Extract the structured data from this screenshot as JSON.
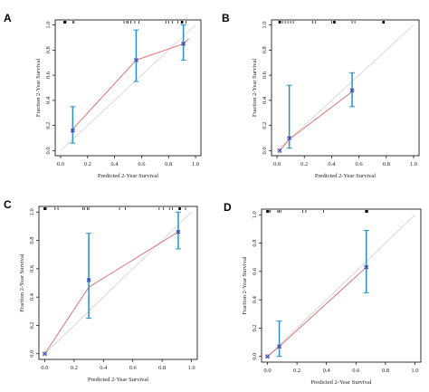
{
  "colors": {
    "calibration_line": "#e0666a",
    "ideal_line": "#c4c4c4",
    "error_bar": "#2a8fc8",
    "point_x": "#2b34c9",
    "point_circle": "#888888",
    "axis": "#000000",
    "rug": "#000000"
  },
  "chart_data": [
    {
      "panel": "A",
      "type": "line",
      "xlabel": "Predicted 2-Year Survival",
      "ylabel": "Fraction 2-Year Survival",
      "xlim": [
        0,
        1
      ],
      "ylim": [
        0,
        1
      ],
      "x_ticks": [
        "0.0",
        "0.2",
        "0.4",
        "0.6",
        "0.8",
        "1.0"
      ],
      "y_ticks": [
        "0.0",
        "0.2",
        "0.4",
        "0.6",
        "0.8",
        "1.0"
      ],
      "grid": false,
      "points": [
        {
          "x": 0.09,
          "y": 0.16,
          "lo": 0.06,
          "hi": 0.35
        },
        {
          "x": 0.56,
          "y": 0.72,
          "lo": 0.55,
          "hi": 0.96
        },
        {
          "x": 0.91,
          "y": 0.85,
          "lo": 0.72,
          "hi": 1.0
        }
      ],
      "curve": [
        [
          0.08,
          0.16
        ],
        [
          0.56,
          0.72
        ],
        [
          0.91,
          0.85
        ],
        [
          0.95,
          0.89
        ]
      ],
      "rug": [
        0.03,
        0.04,
        0.09,
        0.1,
        0.47,
        0.49,
        0.5,
        0.52,
        0.55,
        0.58,
        0.78,
        0.8,
        0.83,
        0.87,
        0.9,
        0.93
      ],
      "rug_heavy": [
        0.03,
        0.9
      ]
    },
    {
      "panel": "B",
      "type": "line",
      "xlabel": "Predicted 2-Year Survival",
      "ylabel": "Fraction 2-Year Survival",
      "xlim": [
        0,
        1
      ],
      "ylim": [
        0,
        1
      ],
      "x_ticks": [
        "0.0",
        "0.2",
        "0.4",
        "0.6",
        "0.8",
        "1.0"
      ],
      "y_ticks": [
        "0.0",
        "0.2",
        "0.4",
        "0.6",
        "0.8",
        "1.0"
      ],
      "grid": false,
      "points": [
        {
          "x": 0.02,
          "y": 0.0,
          "lo": null,
          "hi": null
        },
        {
          "x": 0.09,
          "y": 0.1,
          "lo": 0.02,
          "hi": 0.52
        },
        {
          "x": 0.55,
          "y": 0.48,
          "lo": 0.35,
          "hi": 0.62
        }
      ],
      "curve": [
        [
          0.02,
          0.0
        ],
        [
          0.09,
          0.09
        ],
        [
          0.55,
          0.47
        ]
      ],
      "rug": [
        0.02,
        0.04,
        0.06,
        0.08,
        0.1,
        0.12,
        0.26,
        0.28,
        0.4,
        0.42,
        0.55,
        0.57,
        0.78
      ],
      "rug_heavy": [
        0.02,
        0.42,
        0.78
      ]
    },
    {
      "panel": "C",
      "type": "line",
      "xlabel": "Predicted 2-Year Survival",
      "ylabel": "Fraction 2-Year Survival",
      "xlim": [
        0,
        1
      ],
      "ylim": [
        0,
        1
      ],
      "x_ticks": [
        "0.0",
        "0.2",
        "0.4",
        "0.6",
        "0.8",
        "1.0"
      ],
      "y_ticks": [
        "0.0",
        "0.2",
        "0.4",
        "0.6",
        "0.8",
        "1.0"
      ],
      "grid": false,
      "points": [
        {
          "x": 0.0,
          "y": 0.0,
          "lo": null,
          "hi": null
        },
        {
          "x": 0.3,
          "y": 0.52,
          "lo": 0.25,
          "hi": 0.85
        },
        {
          "x": 0.91,
          "y": 0.86,
          "lo": 0.74,
          "hi": 1.0
        }
      ],
      "curve": [
        [
          0.0,
          0.0
        ],
        [
          0.3,
          0.47
        ],
        [
          0.91,
          0.86
        ]
      ],
      "rug": [
        0.0,
        0.01,
        0.07,
        0.09,
        0.26,
        0.27,
        0.29,
        0.3,
        0.51,
        0.55,
        0.78,
        0.81,
        0.85,
        0.87,
        0.92,
        0.96
      ],
      "rug_heavy": [
        0.0,
        0.92
      ]
    },
    {
      "panel": "D",
      "type": "line",
      "xlabel": "Predicted 2-Year Survival",
      "ylabel": "Fraction 2-Year Survival",
      "xlim": [
        0,
        1
      ],
      "ylim": [
        0,
        1
      ],
      "x_ticks": [
        "0.0",
        "0.2",
        "0.4",
        "0.6",
        "0.8",
        "1.0"
      ],
      "y_ticks": [
        "0.0",
        "0.2",
        "0.4",
        "0.6",
        "0.8",
        "1.0"
      ],
      "grid": false,
      "points": [
        {
          "x": 0.0,
          "y": 0.0,
          "lo": null,
          "hi": null
        },
        {
          "x": 0.08,
          "y": 0.07,
          "lo": 0.0,
          "hi": 0.25
        },
        {
          "x": 0.67,
          "y": 0.63,
          "lo": 0.45,
          "hi": 0.89
        }
      ],
      "curve": [
        [
          0.0,
          0.0
        ],
        [
          0.08,
          0.07
        ],
        [
          0.67,
          0.63
        ]
      ],
      "rug": [
        0.0,
        0.01,
        0.02,
        0.07,
        0.08,
        0.09,
        0.24,
        0.26,
        0.38,
        0.67,
        0.68
      ],
      "rug_heavy": [
        0.0,
        0.67
      ]
    }
  ]
}
